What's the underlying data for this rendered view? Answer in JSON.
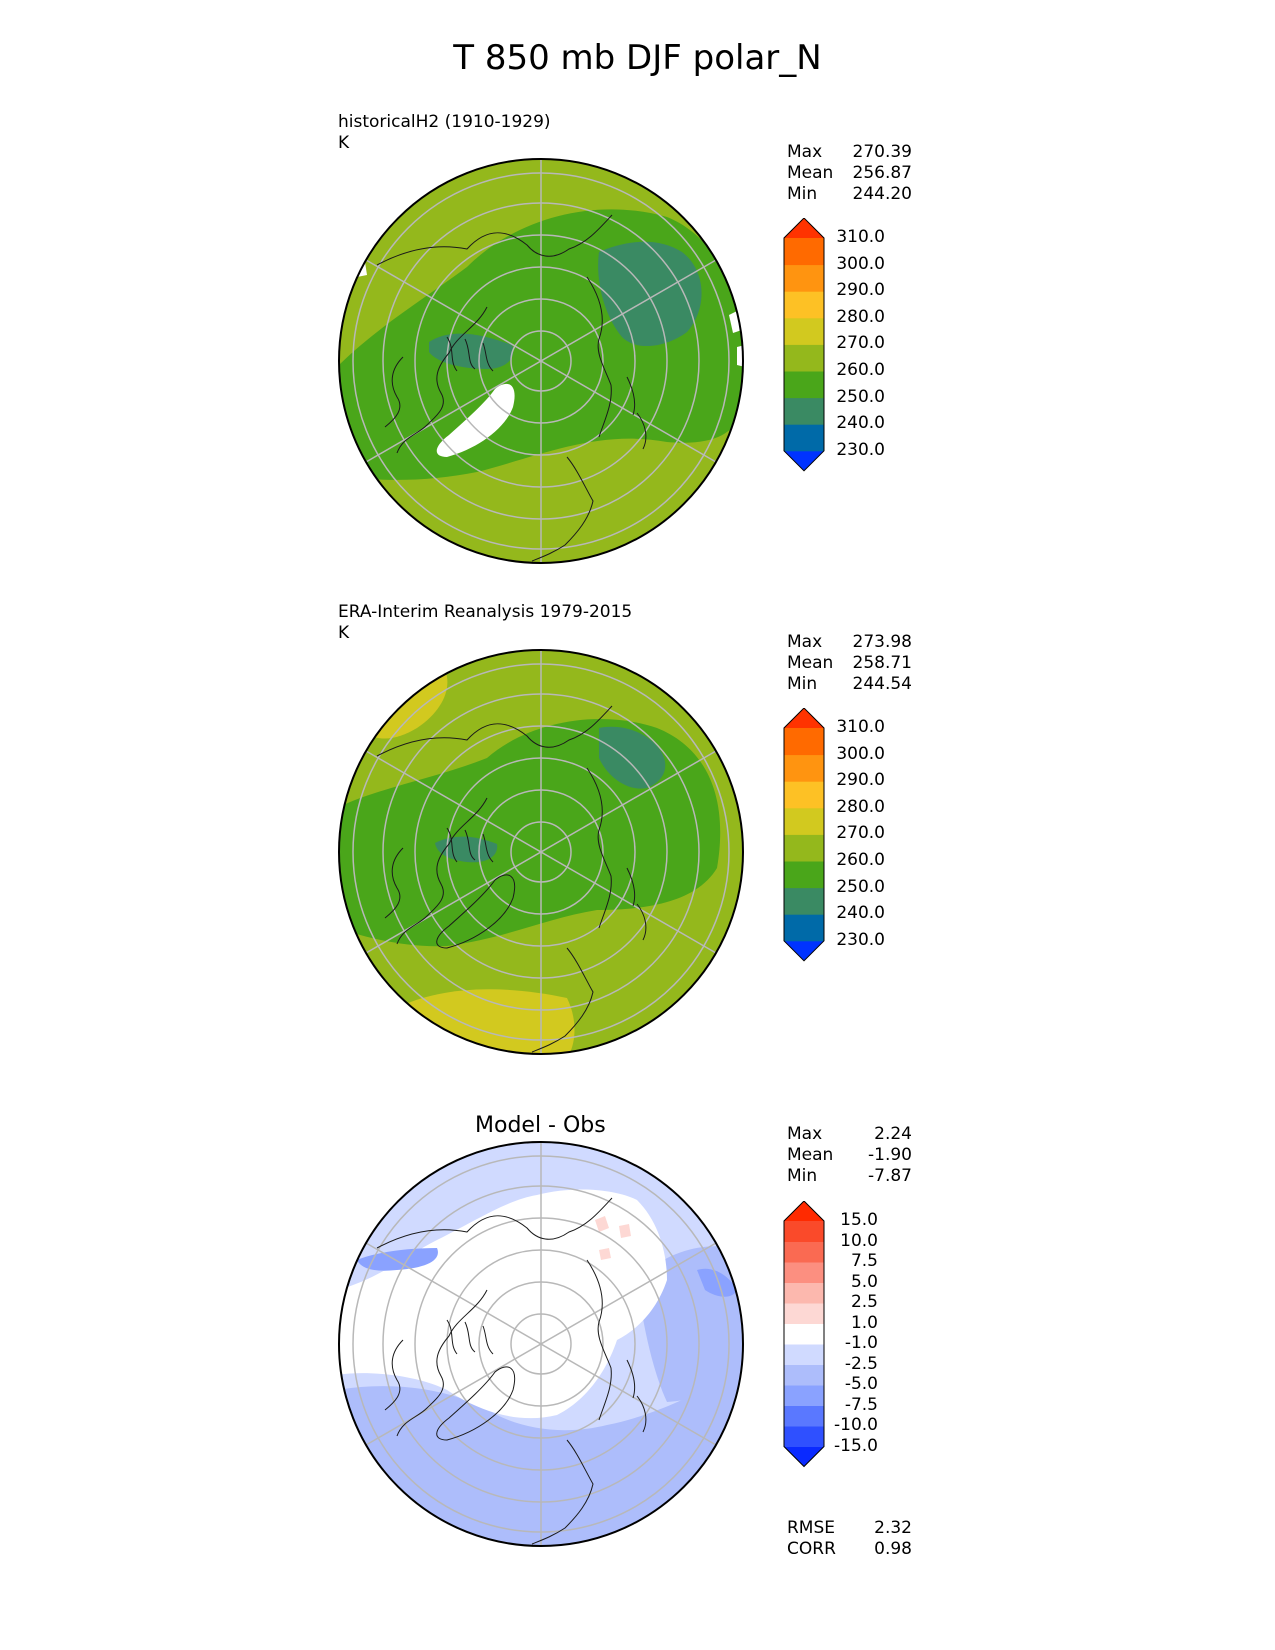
{
  "title": "T 850 mb DJF polar_N",
  "panels": [
    {
      "id": "model",
      "title_lines": [
        "historicalH2 (1910-1929)",
        "K"
      ],
      "stats": [
        [
          "Max",
          "270.39"
        ],
        [
          "Mean",
          "256.87"
        ],
        [
          "Min",
          "244.20"
        ]
      ],
      "colorbar": {
        "colors": [
          "#0033ff",
          "#006aa8",
          "#3a8a63",
          "#4aa61a",
          "#94b81c",
          "#d2c91f",
          "#fdc125",
          "#ff9410",
          "#ff6a00",
          "#ff3300"
        ],
        "labels": [
          "230.0",
          "240.0",
          "250.0",
          "260.0",
          "270.0",
          "280.0",
          "290.0",
          "300.0",
          "310.0"
        ]
      }
    },
    {
      "id": "obs",
      "title_lines": [
        "ERA-Interim Reanalysis 1979-2015",
        "K"
      ],
      "stats": [
        [
          "Max",
          "273.98"
        ],
        [
          "Mean",
          "258.71"
        ],
        [
          "Min",
          "244.54"
        ]
      ],
      "colorbar": {
        "colors": [
          "#0033ff",
          "#006aa8",
          "#3a8a63",
          "#4aa61a",
          "#94b81c",
          "#d2c91f",
          "#fdc125",
          "#ff9410",
          "#ff6a00",
          "#ff3300"
        ],
        "labels": [
          "230.0",
          "240.0",
          "250.0",
          "260.0",
          "270.0",
          "280.0",
          "290.0",
          "300.0",
          "310.0"
        ]
      }
    },
    {
      "id": "diff",
      "title_lines": [
        "Model - Obs"
      ],
      "stats": [
        [
          "Max",
          "2.24"
        ],
        [
          "Mean",
          "-1.90"
        ],
        [
          "Min",
          "-7.87"
        ]
      ],
      "colorbar": {
        "colors": [
          "#0a2aff",
          "#2f50ff",
          "#5a78ff",
          "#8aa2ff",
          "#adbdfb",
          "#d0daff",
          "#ffffff",
          "#fdd8d4",
          "#fcb8ae",
          "#fc8f80",
          "#fa6a52",
          "#fa4a2a",
          "#ff2a00"
        ],
        "labels": [
          "-15.0",
          "-10.0",
          "-7.5",
          "-5.0",
          "-2.5",
          "-1.0",
          "1.0",
          "2.5",
          "5.0",
          "7.5",
          "10.0",
          "15.0"
        ]
      },
      "metrics": [
        [
          "RMSE",
          "2.32"
        ],
        [
          "CORR",
          "0.98"
        ]
      ]
    }
  ]
}
